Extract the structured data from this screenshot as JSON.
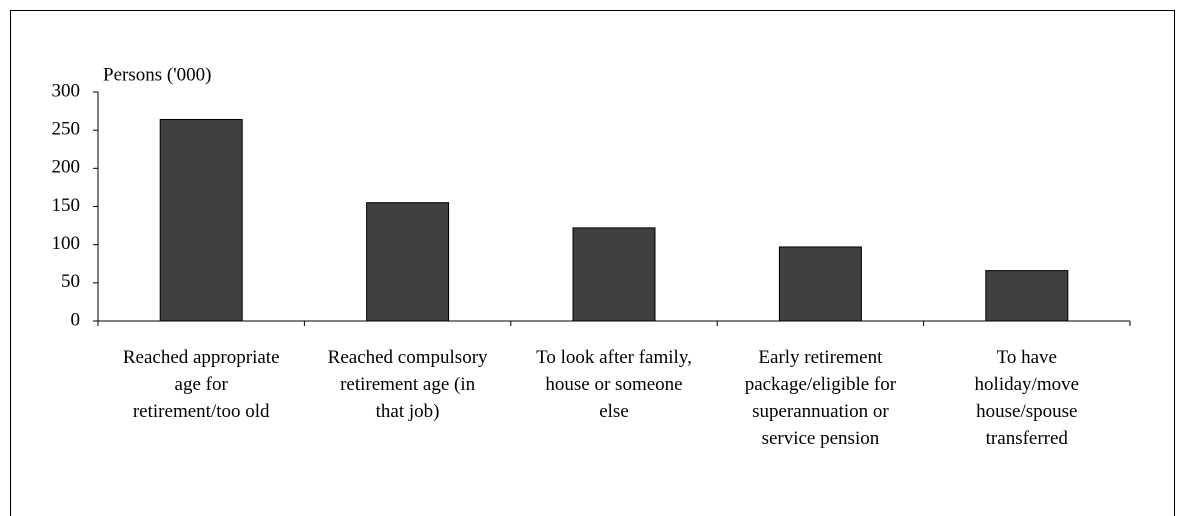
{
  "chart_data": {
    "type": "bar",
    "y_label": "Persons ('000)",
    "categories": [
      "Reached appropriate age for retirement/too old",
      "Reached compulsory retirement age (in that job)",
      "To look after family, house or someone else",
      "Early retirement package/eligible for superannuation or service pension",
      "To have holiday/move house/spouse transferred"
    ],
    "values": [
      264,
      155,
      122,
      97,
      66
    ],
    "color": "#404040",
    "ylim": [
      0,
      300
    ],
    "yticks": [
      0,
      50,
      100,
      150,
      200,
      250,
      300
    ],
    "grid": false
  }
}
